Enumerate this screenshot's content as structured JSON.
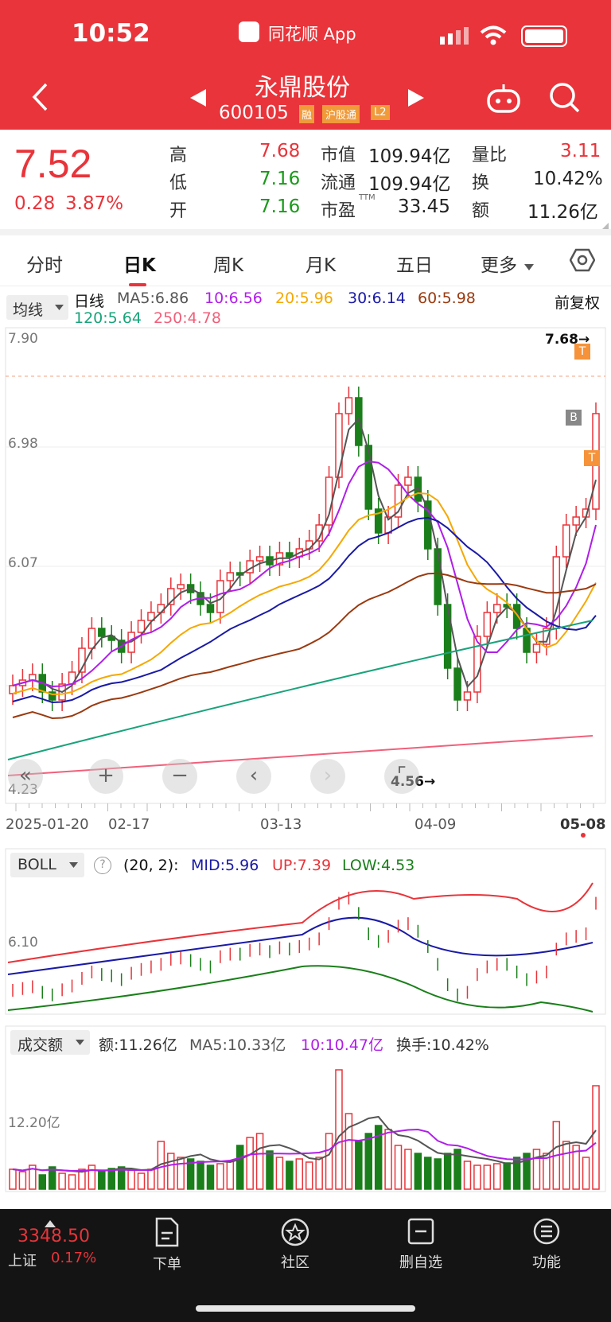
{
  "status_bar": {
    "time": "10:52",
    "app_name": "同花顺 App"
  },
  "header": {
    "stock_name": "永鼎股份",
    "stock_code": "600105",
    "tags": [
      "融",
      "沪股通",
      "L2"
    ]
  },
  "quote": {
    "price": "7.52",
    "change": "0.28",
    "change_pct": "3.87%",
    "high_label": "高",
    "high": "7.68",
    "low_label": "低",
    "low": "7.16",
    "open_label": "开",
    "open": "7.16",
    "mcap_label": "市值",
    "mcap": "109.94亿",
    "float_label": "流通",
    "float": "109.94亿",
    "pe_label": "市盈",
    "pe_sup": "TTM",
    "pe": "33.45",
    "vr_label": "量比",
    "vr": "3.11",
    "turnover_label": "换",
    "turnover": "10.42%",
    "amount_label": "额",
    "amount": "11.26亿"
  },
  "tabs": [
    "分时",
    "日K",
    "周K",
    "月K",
    "五日",
    "更多"
  ],
  "active_tab": "日K",
  "ma_bar": {
    "selector": "均线",
    "line_type": "日线",
    "ma5": "MA5:6.86",
    "ma10": "10:6.56",
    "ma20": "20:5.96",
    "ma30": "30:6.14",
    "ma60": "60:5.98",
    "ma120": "120:5.64",
    "ma250": "250:4.78",
    "adjust": "前复权"
  },
  "price_chart": {
    "y_labels": [
      "7.90",
      "6.98",
      "6.07",
      "4.23"
    ],
    "high_mark": "7.68→",
    "low_mark": "4.56→",
    "x_labels": [
      "2025-01-20",
      "02-17",
      "03-13",
      "04-09",
      "05-08"
    ],
    "markers": [
      "T",
      "B",
      "T"
    ]
  },
  "boll": {
    "selector": "BOLL",
    "params": "(20, 2):",
    "mid": "MID:5.96",
    "up": "UP:7.39",
    "low": "LOW:4.53",
    "y_label": "6.10"
  },
  "volume": {
    "selector": "成交额",
    "amount": "额:11.26亿",
    "ma5": "MA5:10.33亿",
    "ma10": "10:10.47亿",
    "turnover": "换手:10.42%",
    "y_label": "12.20亿"
  },
  "index": {
    "value": "3348.50",
    "name": "上证",
    "change_pct": "0.17%"
  },
  "nav": [
    "下单",
    "社区",
    "删自选",
    "功能"
  ],
  "colors": {
    "red": "#e8343a",
    "green": "#1a7f1a",
    "ma5": "#555555",
    "ma10": "#b01ee8",
    "ma20": "#f5a800",
    "ma30": "#1a1aa6",
    "ma60": "#9a3a10",
    "ma120": "#1aa37a",
    "ma250": "#f0607a"
  }
}
